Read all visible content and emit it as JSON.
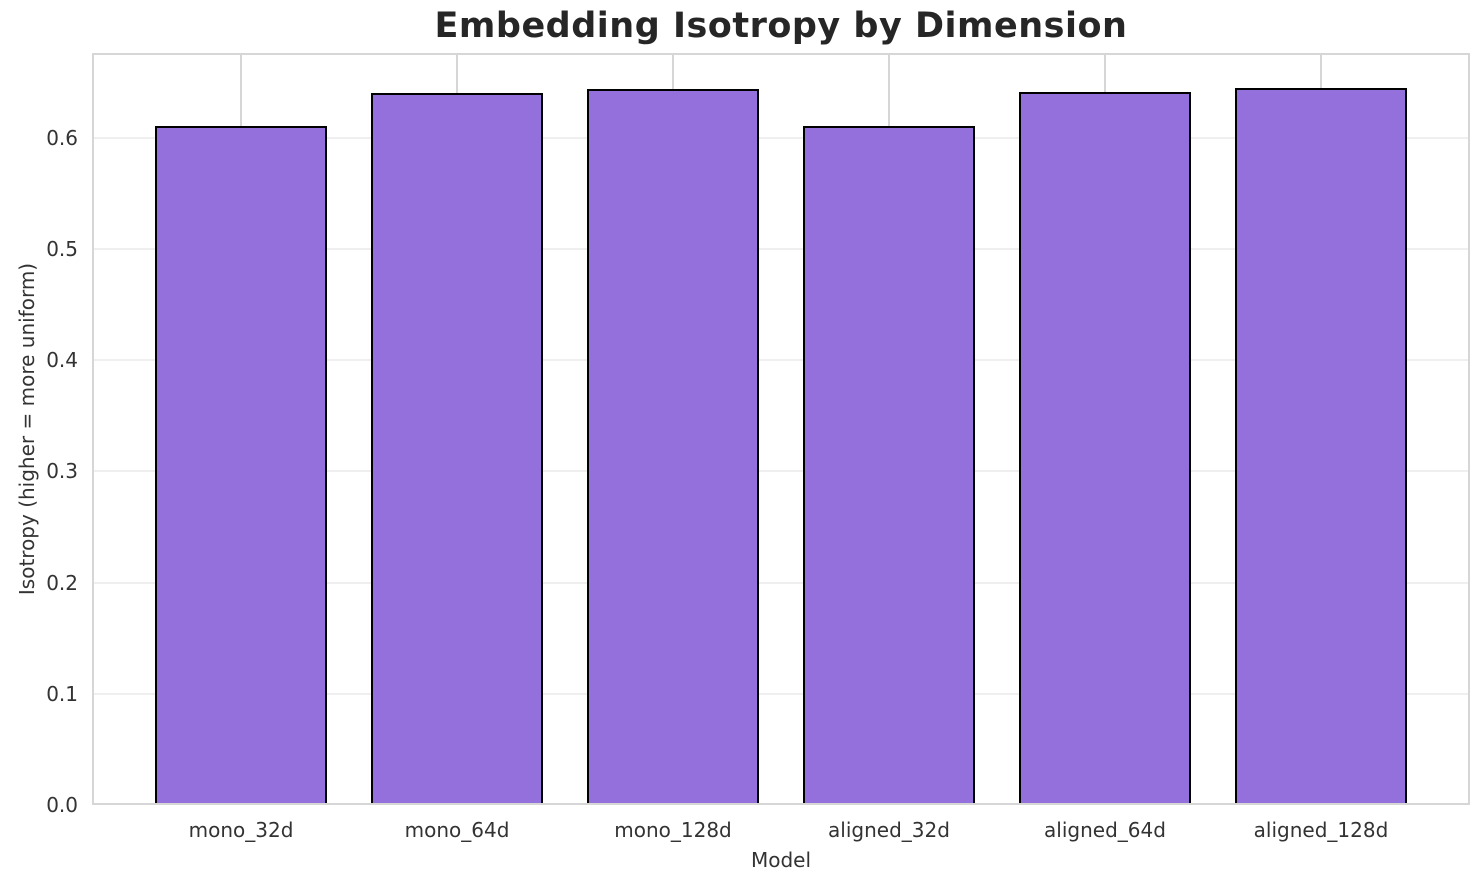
{
  "chart_data": {
    "type": "bar",
    "title": "Embedding Isotropy by Dimension",
    "xlabel": "Model",
    "ylabel": "Isotropy (higher = more uniform)",
    "categories": [
      "mono_32d",
      "mono_64d",
      "mono_128d",
      "aligned_32d",
      "aligned_64d",
      "aligned_128d"
    ],
    "values": [
      0.61,
      0.64,
      0.644,
      0.61,
      0.641,
      0.645
    ],
    "ylim": [
      0,
      0.676
    ],
    "xlim": [
      -0.69,
      5.69
    ],
    "yticks": [
      0.0,
      0.1,
      0.2,
      0.3,
      0.4,
      0.5,
      0.6
    ],
    "ytick_labels": [
      "0.0",
      "0.1",
      "0.2",
      "0.3",
      "0.4",
      "0.5",
      "0.6"
    ],
    "bar_width_units": 0.8,
    "grid": true,
    "legend": false,
    "colors": {
      "bar_fill": "#9370DB",
      "bar_edge": "#000000",
      "grid_horizontal": "#efefef",
      "grid_vertical": "#d6d6d6",
      "spine": "#d6d6d6",
      "title_text": "#262626",
      "tick_text": "#333333"
    }
  }
}
